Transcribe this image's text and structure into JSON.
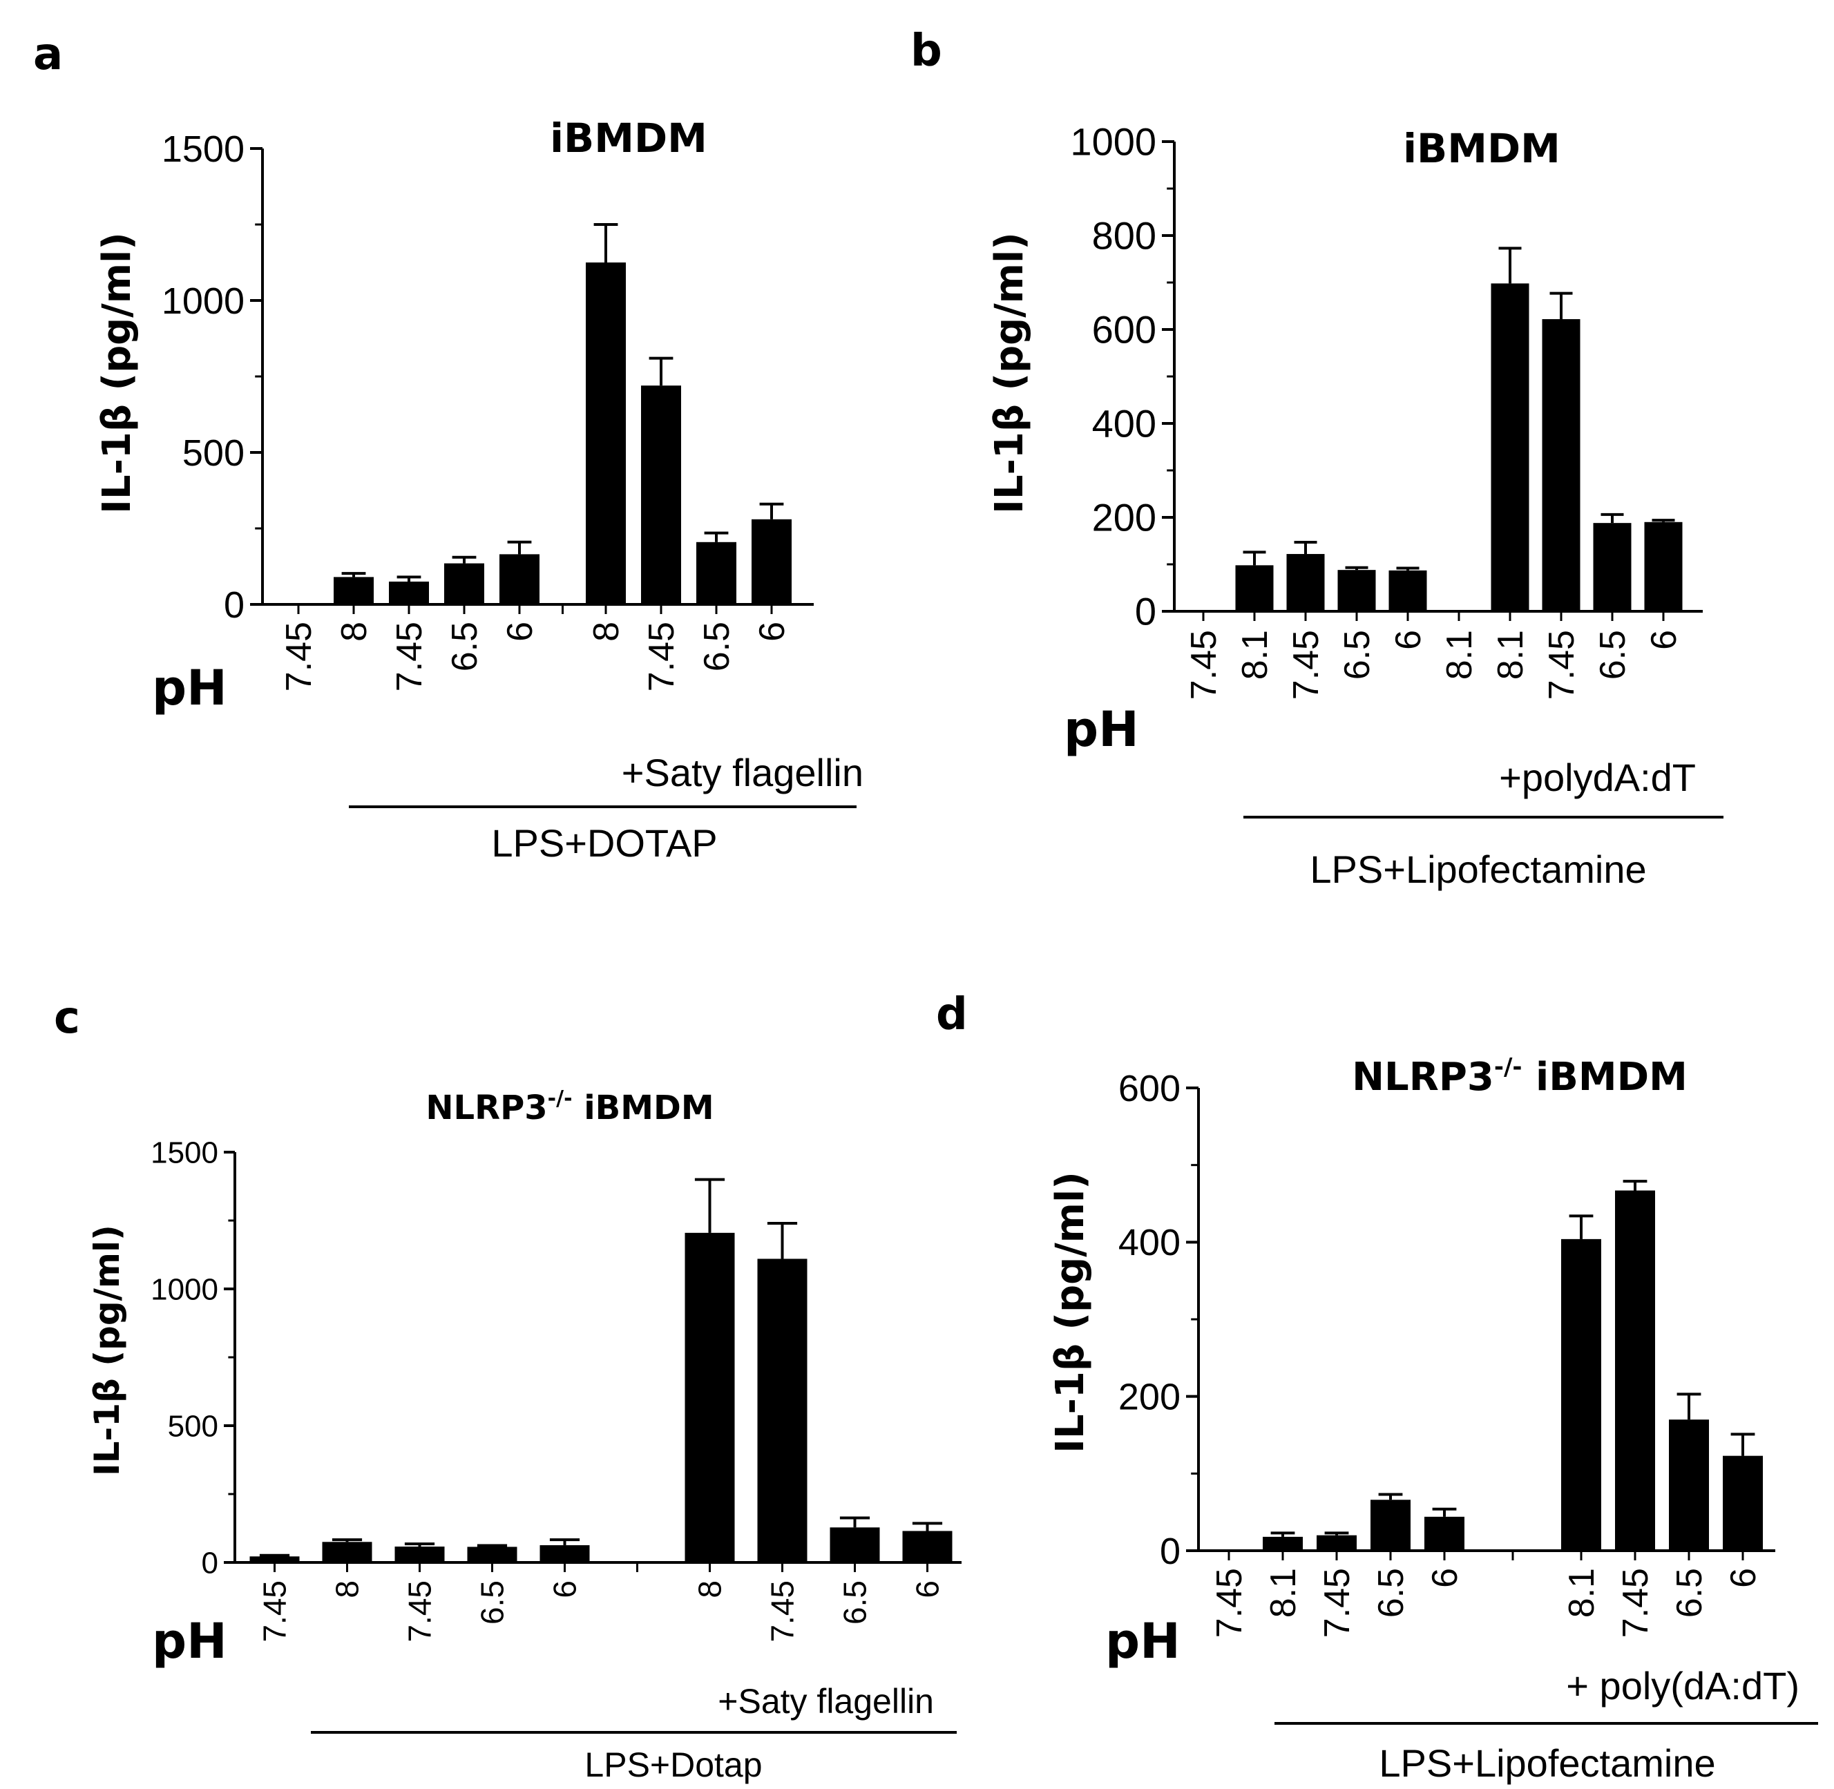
{
  "chart_data": [
    {
      "panel": "a",
      "type": "bar",
      "title": "iBMDM",
      "ylabel": "IL-1β (pg/ml)",
      "ylim": [
        0,
        1500
      ],
      "yticks": [
        "0",
        "500",
        "1000",
        "1500"
      ],
      "xlabel": "pH",
      "categories": [
        "7.45",
        "8",
        "7.45",
        "6.5",
        "6",
        "8",
        "7.45",
        "6.5",
        "6"
      ],
      "values": [
        0,
        90,
        75,
        135,
        165,
        1125,
        720,
        205,
        280
      ],
      "errors": [
        0,
        12,
        15,
        20,
        40,
        125,
        90,
        30,
        50
      ],
      "group_labels": [
        "+Saty flagellin",
        "LPS+DOTAP"
      ]
    },
    {
      "panel": "b",
      "type": "bar",
      "title": "iBMDM",
      "ylabel": "IL-1β (pg/ml)",
      "ylim": [
        0,
        1000
      ],
      "yticks": [
        "0",
        "200",
        "400",
        "600",
        "800",
        "1000"
      ],
      "xlabel": "pH",
      "categories": [
        "7.45",
        "8.1",
        "7.45",
        "6.5",
        "6",
        "8.1",
        "8.1",
        "7.45",
        "6.5",
        "6"
      ],
      "values": [
        2,
        98,
        122,
        88,
        87,
        0,
        698,
        622,
        188,
        190
      ],
      "errors": [
        0,
        28,
        25,
        5,
        5,
        0,
        75,
        55,
        18,
        4
      ],
      "group_labels": [
        "+polydA:dT",
        "LPS+Lipofectamine"
      ]
    },
    {
      "panel": "c",
      "type": "bar",
      "title": "NLRP3",
      "title_sup": "-/-",
      "title_rest": " iBMDM",
      "ylabel": "IL-1β (pg/ml)",
      "ylim": [
        0,
        1500
      ],
      "yticks": [
        "0",
        "500",
        "1000",
        "1500"
      ],
      "xlabel": "pH",
      "categories": [
        "7.45",
        "8",
        "7.45",
        "6.5",
        "6",
        "8",
        "7.45",
        "6.5",
        "6"
      ],
      "values": [
        22,
        75,
        58,
        57,
        63,
        1205,
        1110,
        128,
        115
      ],
      "errors": [
        4,
        8,
        10,
        5,
        20,
        195,
        130,
        35,
        28
      ],
      "group_labels": [
        "+Saty flagellin",
        "LPS+Dotap"
      ]
    },
    {
      "panel": "d",
      "type": "bar",
      "title": "NLRP3",
      "title_sup": "-/-",
      "title_rest": " iBMDM",
      "ylabel": "IL-1β (pg/ml)",
      "ylim": [
        0,
        600
      ],
      "yticks": [
        "0",
        "200",
        "400",
        "600"
      ],
      "xlabel": "pH",
      "categories": [
        "7.45",
        "8.1",
        "7.45",
        "6.5",
        "6",
        "8.1",
        "7.45",
        "6.5",
        "6"
      ],
      "values": [
        1,
        18,
        20,
        66,
        44,
        404,
        467,
        170,
        123
      ],
      "errors": [
        0,
        5,
        3,
        7,
        10,
        30,
        12,
        33,
        28
      ],
      "group_labels": [
        "+ poly(dA:dT)",
        "LPS+Lipofectamine"
      ]
    }
  ]
}
